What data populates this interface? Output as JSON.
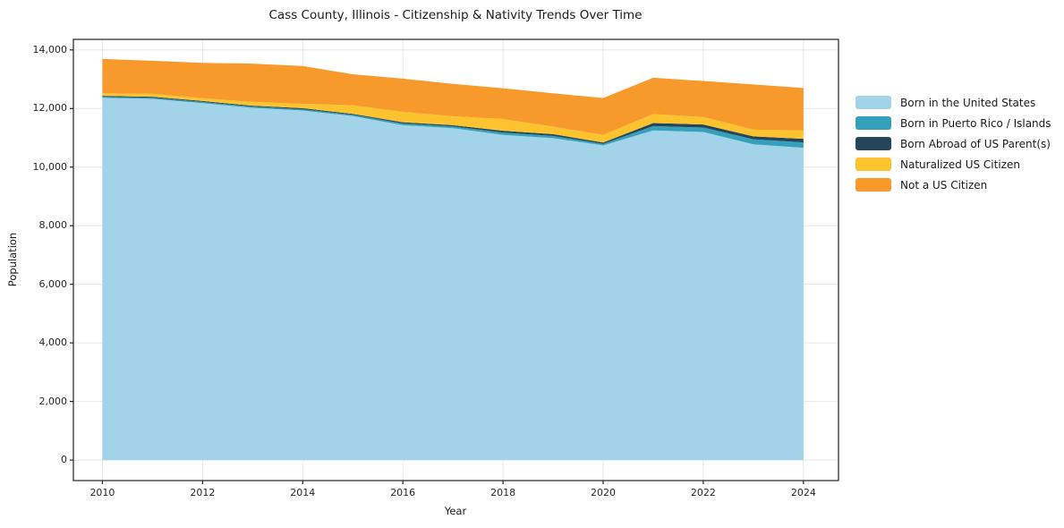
{
  "figure": {
    "title": "Cass County, Illinois - Citizenship & Nativity Trends Over Time"
  },
  "chart_data": {
    "type": "area",
    "stacked": true,
    "title": "Cass County, Illinois - Citizenship & Nativity Trends Over Time",
    "xlabel": "Year",
    "ylabel": "Population",
    "x": [
      2010,
      2011,
      2012,
      2013,
      2014,
      2015,
      2016,
      2017,
      2018,
      2019,
      2020,
      2021,
      2022,
      2023,
      2024
    ],
    "series": [
      {
        "key": "born-us",
        "name": "Born in the United States",
        "color": "#a3d3e8",
        "values": [
          12365,
          12330,
          12185,
          12020,
          11930,
          11740,
          11430,
          11330,
          11100,
          10990,
          10740,
          11250,
          11200,
          10780,
          10660
        ]
      },
      {
        "key": "puerto-rico",
        "name": "Born in Puerto Rico / Islands",
        "color": "#35a0ba",
        "values": [
          35,
          35,
          40,
          45,
          45,
          45,
          60,
          60,
          80,
          75,
          55,
          150,
          150,
          170,
          185
        ]
      },
      {
        "key": "born-abroad",
        "name": "Born Abroad of US Parent(s)",
        "color": "#24455a",
        "values": [
          30,
          35,
          30,
          30,
          35,
          30,
          40,
          40,
          60,
          60,
          45,
          105,
          105,
          100,
          120
        ]
      },
      {
        "key": "naturalized",
        "name": "Naturalized US Citizen",
        "color": "#fcc32f",
        "values": [
          90,
          100,
          95,
          130,
          150,
          295,
          355,
          305,
          400,
          255,
          260,
          305,
          255,
          230,
          285
        ]
      },
      {
        "key": "not-citizen",
        "name": "Not a US Citizen",
        "color": "#f8992b",
        "values": [
          1170,
          1130,
          1210,
          1305,
          1290,
          1060,
          1135,
          1105,
          1050,
          1140,
          1260,
          1240,
          1230,
          1540,
          1450
        ]
      }
    ],
    "x_ticks": [
      2010,
      2012,
      2014,
      2016,
      2018,
      2020,
      2022,
      2024
    ],
    "x_tick_labels": [
      "2010",
      "2012",
      "2014",
      "2016",
      "2018",
      "2020",
      "2022",
      "2024"
    ],
    "y_ticks": [
      0,
      2000,
      4000,
      6000,
      8000,
      10000,
      12000,
      14000
    ],
    "y_tick_labels": [
      "0",
      "2,000",
      "4,000",
      "6,000",
      "8,000",
      "10,000",
      "12,000",
      "14,000"
    ],
    "xlim": [
      2009.42,
      2024.7
    ],
    "ylim": [
      -700,
      14360
    ],
    "grid": true,
    "grid_color": "#e7e7e7",
    "spine_color": "#222222",
    "tick_color": "#222222",
    "legend_position": "right-outside"
  }
}
